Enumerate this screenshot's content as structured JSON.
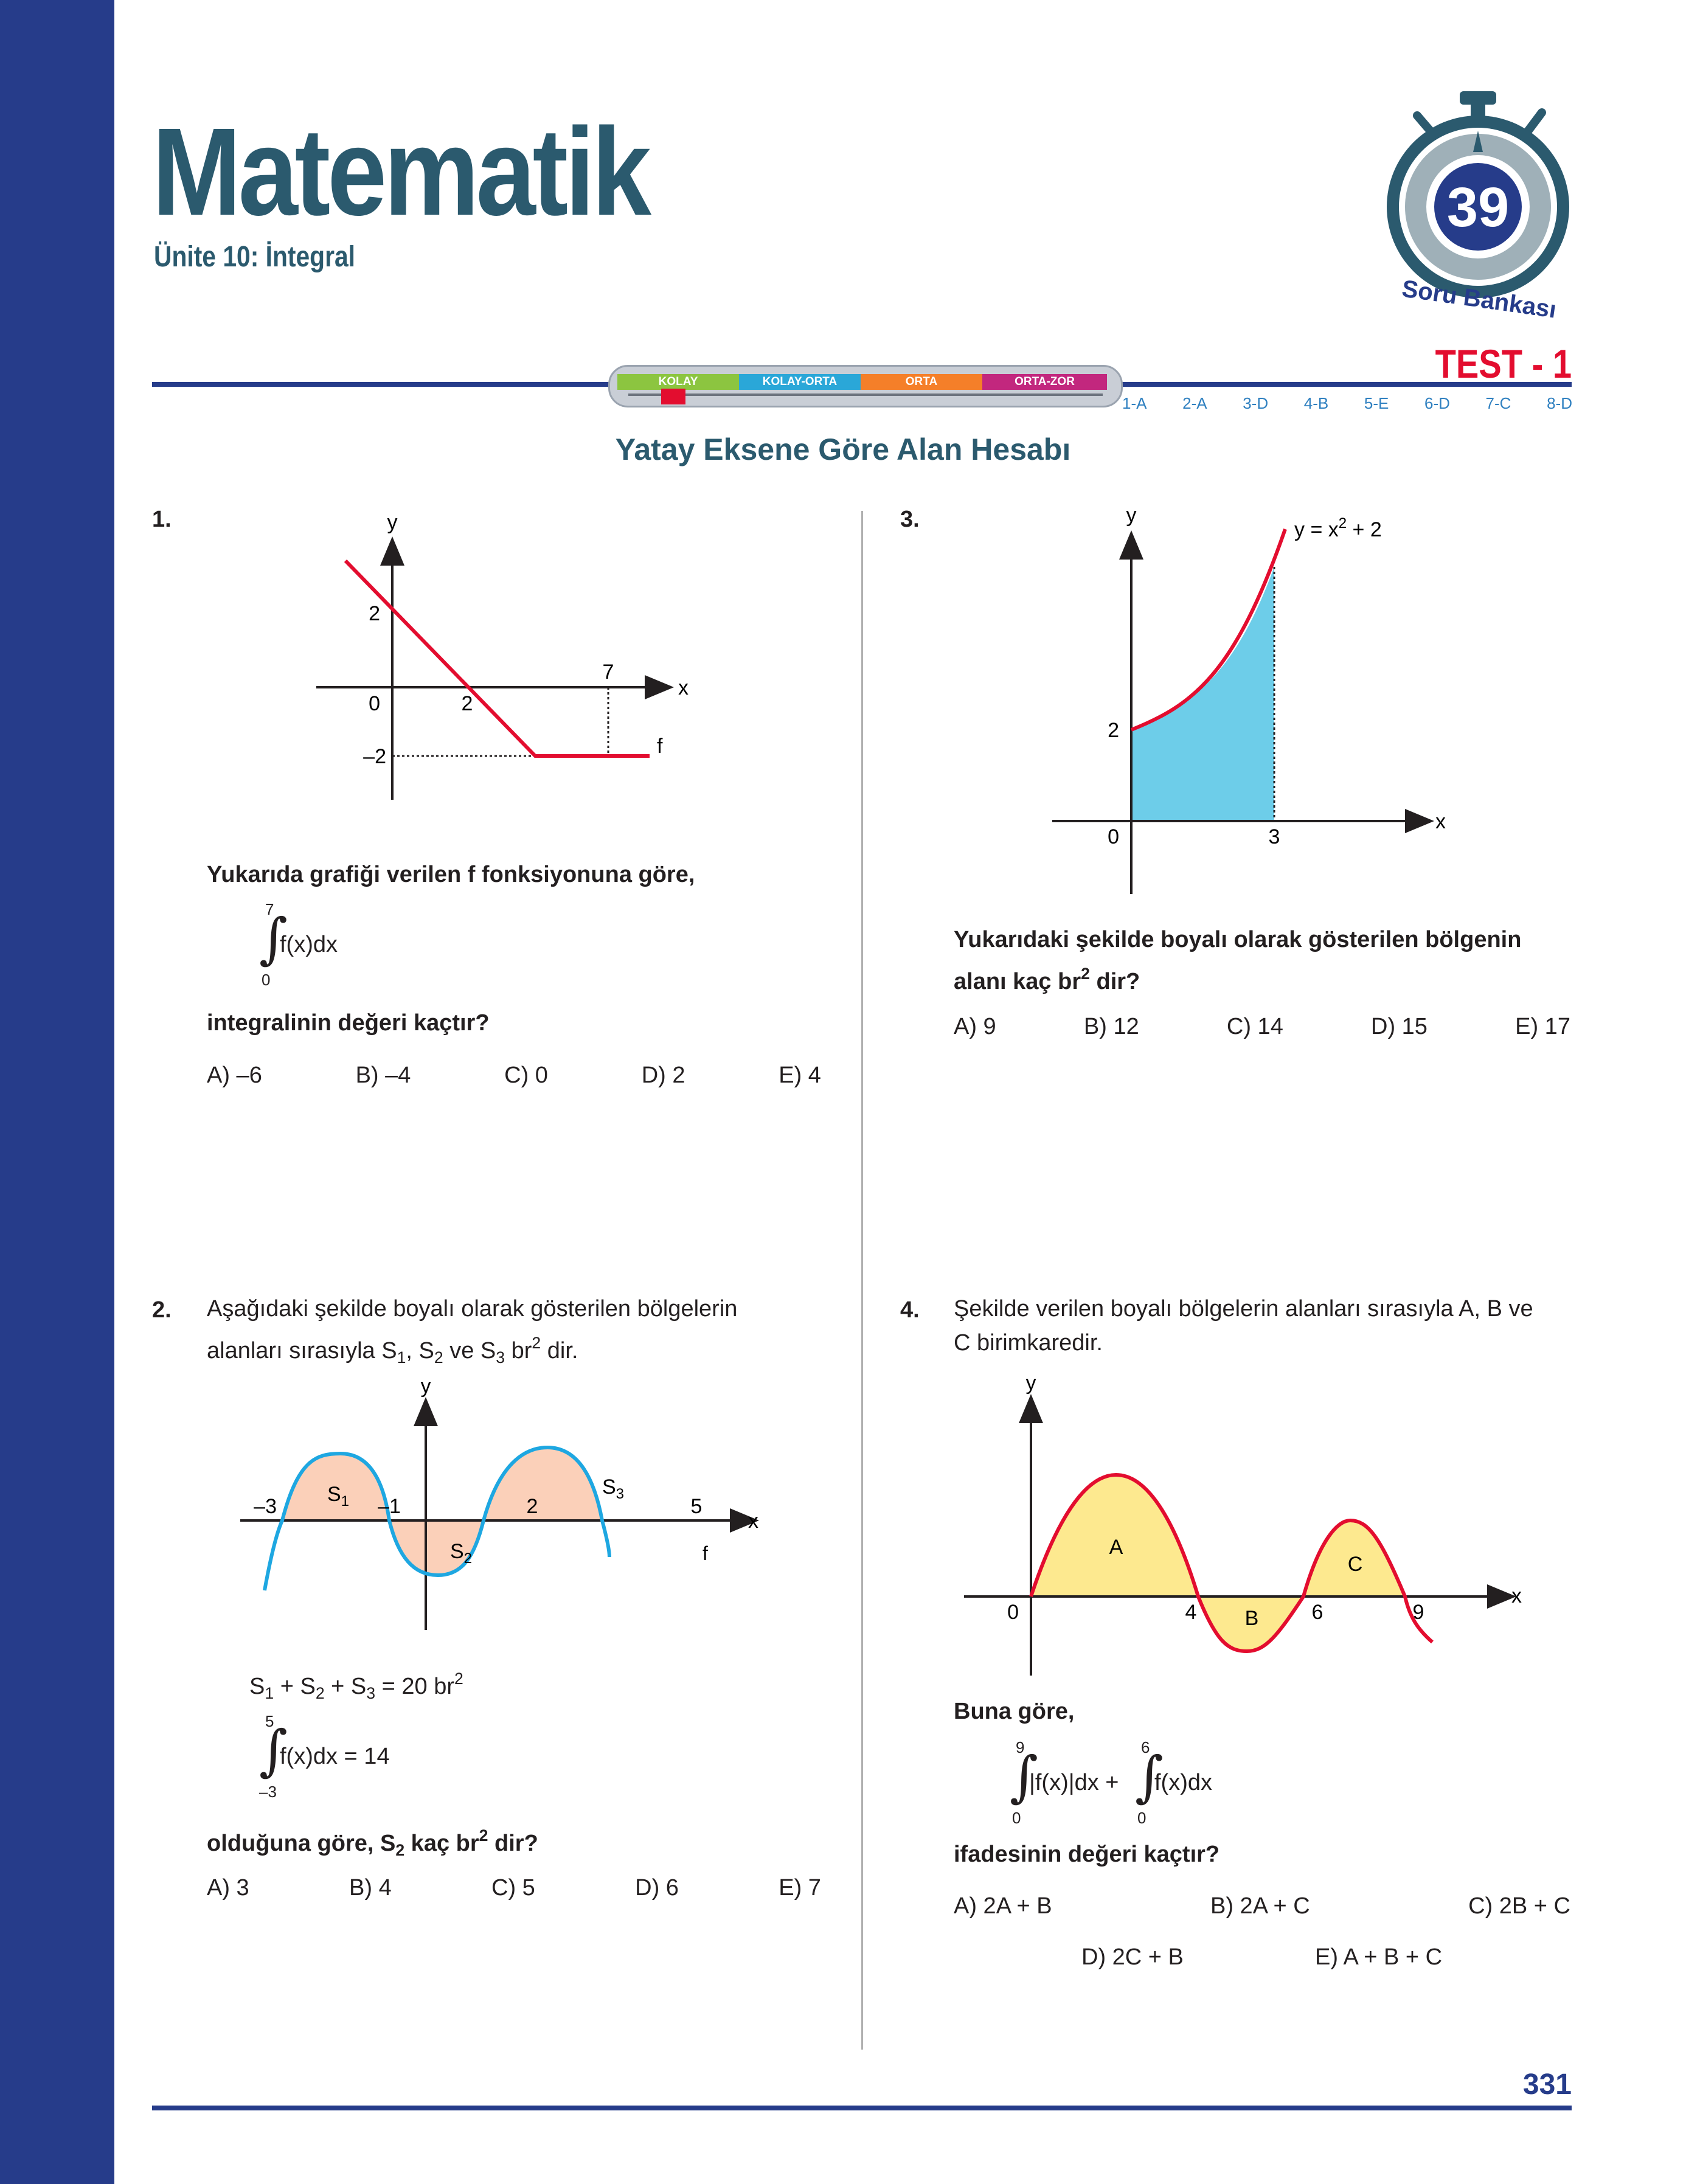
{
  "header": {
    "title": "Matematik",
    "subtitle": "Ünite 10: İntegral",
    "badge_number": "39",
    "badge_text": "Soru Bankası",
    "test_label": "TEST - 1",
    "difficulty": [
      "KOLAY",
      "KOLAY-ORTA",
      "ORTA",
      "ORTA-ZOR"
    ],
    "difficulty_level": 0.12,
    "answer_key": [
      "1-A",
      "2-A",
      "3-D",
      "4-B",
      "5-E",
      "6-D",
      "7-C",
      "8-D"
    ]
  },
  "topic": "Yatay Eksene Göre Alan Hesabı",
  "colors": {
    "sidebar": "#263c8a",
    "title": "#2b5a6e",
    "accent_red": "#e30d2f",
    "blue_fill": "#6dcde9",
    "orange_fill": "#fbd0b9",
    "yellow_fill": "#fde98f"
  },
  "questions": {
    "q1": {
      "number": "1.",
      "graph_labels": {
        "y": "y",
        "x": "x",
        "y2": "2",
        "o": "0",
        "x2": "2",
        "x7": "7",
        "ym2": "–2",
        "f": "f"
      },
      "prompt": "Yukarıda grafiği verilen f fonksiyonuna göre,",
      "integral": {
        "upper": "7",
        "lower": "0",
        "body": "f(x)dx"
      },
      "question": "integralinin değeri kaçtır?",
      "options": [
        "A) –6",
        "B) –4",
        "C) 0",
        "D) 2",
        "E) 4"
      ]
    },
    "q2": {
      "number": "2.",
      "text_a": "Aşağıdaki şekilde boyalı olarak gösterilen bölgelerin",
      "text_b": "alanları sırasıyla S",
      "graph_labels": {
        "y": "y",
        "x": "x",
        "m3": "–3",
        "m1": "–1",
        "p2": "2",
        "p5": "5",
        "f": "f"
      },
      "integral": {
        "upper": "5",
        "lower": "–3",
        "body": "f(x)dx = 14"
      },
      "question_a": "olduğuna göre, S",
      "question_b": " kaç br",
      "question_c": " dir?",
      "options": [
        "A) 3",
        "B) 4",
        "C) 5",
        "D) 6",
        "E) 7"
      ]
    },
    "q3": {
      "number": "3.",
      "graph_labels": {
        "y": "y",
        "x": "x",
        "y2": "2",
        "o": "0",
        "x3": "3",
        "fn": "y = x",
        "fn_exp": "2",
        "fn_tail": " + 2"
      },
      "prompt_a": "Yukarıdaki şekilde boyalı olarak gösterilen bölgenin",
      "prompt_b": "alanı kaç br",
      "prompt_c": " dir?",
      "options": [
        "A) 9",
        "B) 12",
        "C) 14",
        "D) 15",
        "E) 17"
      ]
    },
    "q4": {
      "number": "4.",
      "text_a": "Şekilde verilen boyalı bölgelerin alanları sırasıyla A, B ve",
      "text_b": "C birimkaredir.",
      "graph_labels": {
        "y": "y",
        "x": "x",
        "o": "0",
        "x4": "4",
        "x6": "6",
        "x9": "9",
        "A": "A",
        "B": "B",
        "C": "C"
      },
      "prompt": "Buna göre,",
      "integral1": {
        "upper": "9",
        "lower": "0",
        "body": "|f(x)|dx +"
      },
      "integral2": {
        "upper": "6",
        "lower": "0",
        "body": "f(x)dx"
      },
      "question": "ifadesinin değeri kaçtır?",
      "options_row1": [
        "A) 2A + B",
        "B) 2A + C",
        "C) 2B + C"
      ],
      "options_row2": [
        "D) 2C + B",
        "E) A + B + C"
      ]
    }
  },
  "page_number": "331"
}
